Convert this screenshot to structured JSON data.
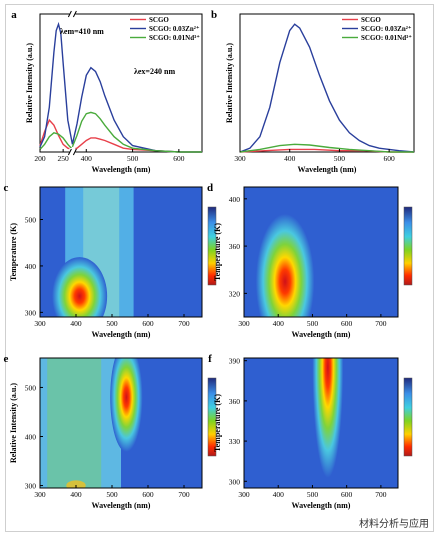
{
  "watermark": "材料分析与应用",
  "chart_data": [
    {
      "panel": "a",
      "type": "line",
      "xlabel": "Wavelength (nm)",
      "ylabel": "Relative Intensity (a.u.)",
      "xlim": [
        200,
        650
      ],
      "axis_break": [
        270,
        370
      ],
      "xticks": [
        200,
        250,
        400,
        500,
        600
      ],
      "legend": [
        "SCGO",
        "SCGO: 0.03Zn²⁺",
        "SCGO: 0.01Nd³⁺"
      ],
      "annotations": [
        "λem=410 nm",
        "λex=240 nm"
      ],
      "colors": [
        "#e8404a",
        "#2a3f9c",
        "#4aab3c"
      ],
      "series": [
        {
          "name": "SCGO",
          "x": [
            200,
            210,
            220,
            230,
            240,
            250,
            260,
            270,
            370,
            380,
            390,
            400,
            410,
            420,
            430,
            440,
            460,
            480,
            500,
            550,
            600,
            650
          ],
          "y": [
            0.05,
            0.16,
            0.25,
            0.21,
            0.13,
            0.06,
            0.03,
            0.02,
            0.02,
            0.03,
            0.06,
            0.09,
            0.11,
            0.11,
            0.1,
            0.09,
            0.06,
            0.03,
            0.02,
            0.01,
            0.0,
            0.0
          ]
        },
        {
          "name": "SCGO: 0.03Zn²⁺",
          "x": [
            200,
            210,
            220,
            230,
            235,
            240,
            245,
            250,
            260,
            270,
            370,
            380,
            390,
            400,
            410,
            420,
            430,
            440,
            460,
            480,
            500,
            550,
            600,
            650
          ],
          "y": [
            0.04,
            0.12,
            0.35,
            0.78,
            0.95,
            1.0,
            0.93,
            0.7,
            0.25,
            0.06,
            0.06,
            0.22,
            0.43,
            0.6,
            0.66,
            0.63,
            0.55,
            0.44,
            0.25,
            0.12,
            0.05,
            0.01,
            0.0,
            0.0
          ]
        },
        {
          "name": "SCGO: 0.01Nd³⁺",
          "x": [
            200,
            210,
            220,
            230,
            240,
            250,
            260,
            270,
            370,
            380,
            390,
            400,
            410,
            420,
            430,
            440,
            460,
            480,
            500,
            550,
            600,
            650
          ],
          "y": [
            0.02,
            0.06,
            0.12,
            0.15,
            0.14,
            0.11,
            0.06,
            0.02,
            0.04,
            0.13,
            0.24,
            0.3,
            0.31,
            0.3,
            0.26,
            0.21,
            0.12,
            0.06,
            0.03,
            0.01,
            0.0,
            0.0
          ]
        }
      ]
    },
    {
      "panel": "b",
      "type": "line",
      "xlabel": "Wavelength (nm)",
      "ylabel": "Relative Intensity (a.u.)",
      "xlim": [
        300,
        650
      ],
      "xticks": [
        300,
        400,
        500,
        600
      ],
      "legend": [
        "SCGO",
        "SCGO: 0.03Zn²⁺",
        "SCGO: 0.01Nd³⁺"
      ],
      "colors": [
        "#e8404a",
        "#2a3f9c",
        "#4aab3c"
      ],
      "series": [
        {
          "name": "SCGO",
          "x": [
            300,
            350,
            400,
            410,
            450,
            500,
            550,
            600,
            650
          ],
          "y": [
            0.0,
            0.01,
            0.02,
            0.02,
            0.02,
            0.01,
            0.01,
            0.0,
            0.0
          ]
        },
        {
          "name": "SCGO: 0.03Zn²⁺",
          "x": [
            300,
            320,
            340,
            360,
            380,
            400,
            410,
            420,
            440,
            460,
            480,
            500,
            520,
            540,
            560,
            580,
            600,
            620,
            650
          ],
          "y": [
            0.0,
            0.03,
            0.12,
            0.35,
            0.7,
            0.95,
            1.0,
            0.97,
            0.82,
            0.6,
            0.4,
            0.25,
            0.15,
            0.09,
            0.05,
            0.03,
            0.02,
            0.01,
            0.0
          ]
        },
        {
          "name": "SCGO: 0.01Nd³⁺",
          "x": [
            300,
            340,
            380,
            410,
            440,
            480,
            520,
            560,
            600,
            650
          ],
          "y": [
            0.0,
            0.02,
            0.05,
            0.06,
            0.055,
            0.035,
            0.02,
            0.01,
            0.0,
            0.0
          ]
        }
      ]
    },
    {
      "panel": "c",
      "type": "heatmap",
      "xlabel": "Wavelength (nm)",
      "ylabel": "Temperature (K)",
      "xlim": [
        300,
        750
      ],
      "ylim": [
        290,
        570
      ],
      "xticks": [
        300,
        400,
        500,
        600,
        700
      ],
      "yticks": [
        300,
        400,
        500
      ],
      "hotspot": {
        "x": 410,
        "y": 335
      }
    },
    {
      "panel": "d",
      "type": "heatmap",
      "xlabel": "Wavelength (nm)",
      "ylabel": "Temperature (K)",
      "xlim": [
        300,
        750
      ],
      "ylim": [
        300,
        410
      ],
      "xticks": [
        300,
        400,
        500,
        600,
        700
      ],
      "yticks": [
        320,
        360,
        400
      ],
      "hotspot": {
        "x": 420,
        "y": 330
      }
    },
    {
      "panel": "e",
      "type": "heatmap",
      "xlabel": "Wavelength (nm)",
      "ylabel": "Relative Intensity (a.u.)",
      "xlim": [
        300,
        750
      ],
      "ylim": [
        295,
        560
      ],
      "xticks": [
        300,
        400,
        500,
        600,
        700
      ],
      "yticks": [
        300,
        400,
        500
      ],
      "hotspot": {
        "x": 540,
        "y": 480
      }
    },
    {
      "panel": "f",
      "type": "heatmap",
      "xlabel": "Wavelength (nm)",
      "ylabel": "Temperature (K)",
      "xlim": [
        300,
        750
      ],
      "ylim": [
        295,
        392
      ],
      "xticks": [
        300,
        400,
        500,
        600,
        700
      ],
      "yticks": [
        300,
        330,
        360,
        390
      ],
      "hotspot": {
        "x": 545,
        "y": 385
      }
    }
  ]
}
